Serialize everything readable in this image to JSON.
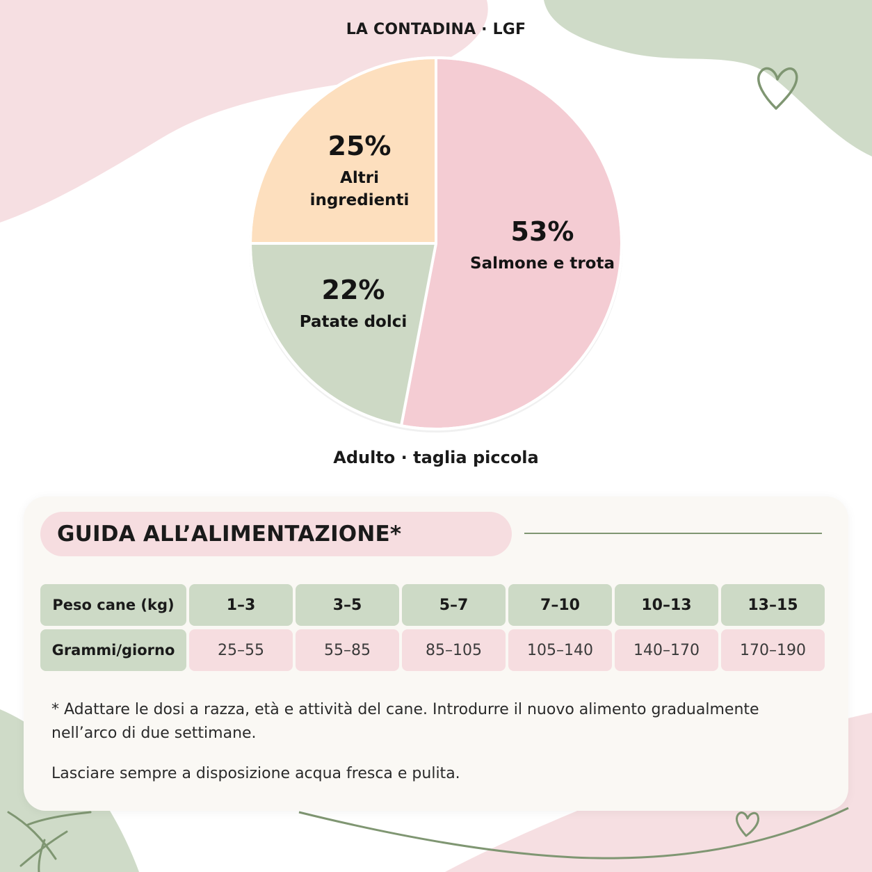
{
  "brand": "LA CONTADINA · LGF",
  "chart_data": {
    "type": "pie",
    "slices": [
      {
        "label": "Salmone e trota",
        "label_lines": [
          "Salmone e trota"
        ],
        "value": 53,
        "display": "53%",
        "color": "#f4ccd3"
      },
      {
        "label": "Patate dolci",
        "label_lines": [
          "Patate dolci"
        ],
        "value": 22,
        "display": "22%",
        "color": "#cdd9c5"
      },
      {
        "label": "Altri ingredienti",
        "label_lines": [
          "Altri",
          "ingredienti"
        ],
        "value": 25,
        "display": "25%",
        "color": "#fddfbe"
      }
    ]
  },
  "subtitle": "Adulto · taglia piccola",
  "feeding_guide": {
    "title": "GUIDA ALL’ALIMENTAZIONE*",
    "row_headers": [
      "Peso cane (kg)",
      "Grammi/giorno"
    ],
    "weights": [
      "1–3",
      "3–5",
      "5–7",
      "7–10",
      "10–13",
      "13–15"
    ],
    "grams": [
      "25–55",
      "55–85",
      "85–105",
      "105–140",
      "140–170",
      "170–190"
    ],
    "notes": [
      "* Adattare le dosi a razza, età e attività del cane. Introdurre il nuovo alimento gradualmente nell’arco di due settimane.",
      "Lasciare sempre a disposizione acqua fresca e pulita."
    ]
  },
  "decoration_colors": {
    "pink": "#f6dfe2",
    "green": "#cfdbc8",
    "line": "#7f9672"
  },
  "icons": [
    "heart-outline-icon",
    "heart-outline-small-icon",
    "leaf-sprig-icon"
  ]
}
